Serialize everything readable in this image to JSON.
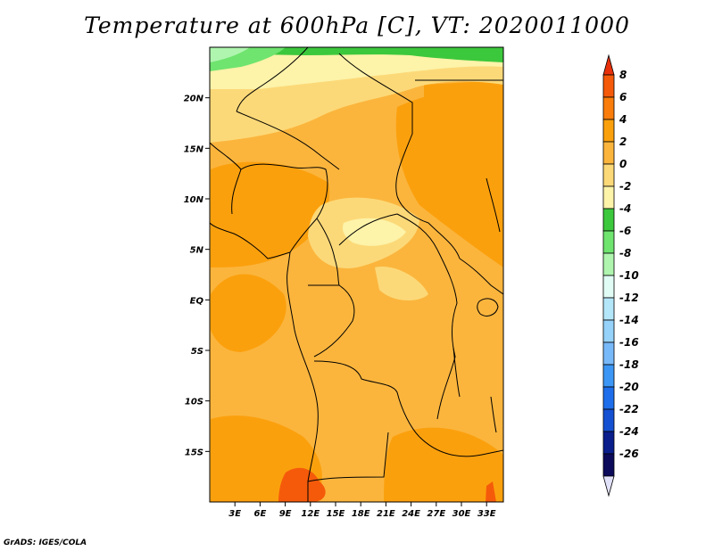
{
  "title": "Temperature at 600hPa [C], VT: 2020011000",
  "credit": "GrADS: IGES/COLA",
  "map": {
    "lon_range": [
      0,
      35
    ],
    "lat_range": [
      -20,
      25
    ],
    "lat_ticks": [
      {
        "value": 20,
        "label": "20N"
      },
      {
        "value": 15,
        "label": "15N"
      },
      {
        "value": 10,
        "label": "10N"
      },
      {
        "value": 5,
        "label": "5N"
      },
      {
        "value": 0,
        "label": "EQ"
      },
      {
        "value": -5,
        "label": "5S"
      },
      {
        "value": -10,
        "label": "10S"
      },
      {
        "value": -15,
        "label": "15S"
      }
    ],
    "lon_ticks": [
      {
        "value": 3,
        "label": "3E"
      },
      {
        "value": 6,
        "label": "6E"
      },
      {
        "value": 9,
        "label": "9E"
      },
      {
        "value": 12,
        "label": "12E"
      },
      {
        "value": 15,
        "label": "15E"
      },
      {
        "value": 18,
        "label": "18E"
      },
      {
        "value": 21,
        "label": "21E"
      },
      {
        "value": 24,
        "label": "24E"
      },
      {
        "value": 27,
        "label": "27E"
      },
      {
        "value": 30,
        "label": "30E"
      },
      {
        "value": 33,
        "label": "33E"
      }
    ]
  },
  "colorbar": {
    "labels": [
      "8",
      "6",
      "4",
      "2",
      "0",
      "-2",
      "-4",
      "-6",
      "-8",
      "-10",
      "-12",
      "-14",
      "-16",
      "-18",
      "-20",
      "-22",
      "-24",
      "-26"
    ],
    "colors": [
      "#e8310a",
      "#f55a0a",
      "#fa7d0b",
      "#fba00d",
      "#fbb53d",
      "#fcd978",
      "#fdf3a9",
      "#3cc83c",
      "#6fe46f",
      "#aff5af",
      "#e1fcf5",
      "#b4e6fa",
      "#96d2fa",
      "#78b9fa",
      "#3c96f5",
      "#1e6eeb",
      "#1450d2",
      "#0a1e8c",
      "#0c0a5a",
      "#e1e1fa"
    ]
  }
}
